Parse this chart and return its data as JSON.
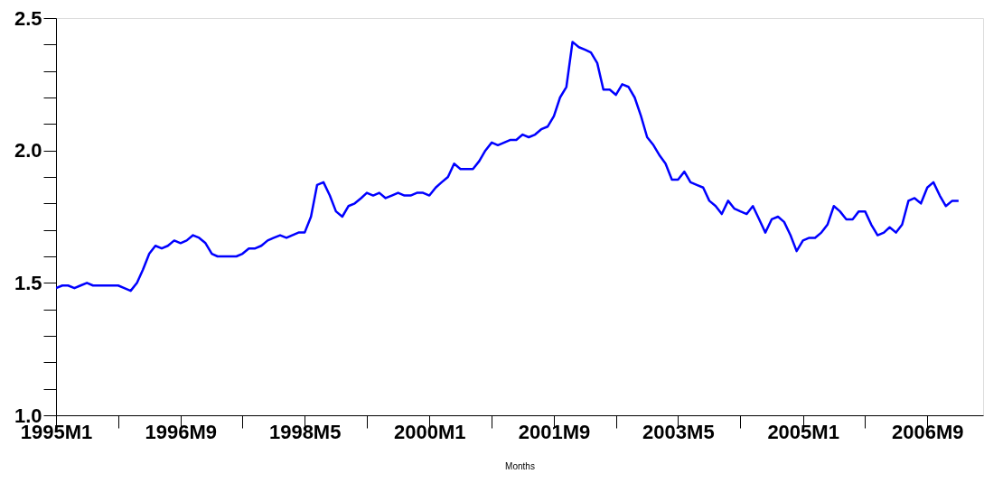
{
  "chart_data": {
    "type": "line",
    "xlabel": "Months",
    "x": [
      "1995-01",
      "1995-02",
      "1995-03",
      "1995-04",
      "1995-05",
      "1995-06",
      "1995-07",
      "1995-08",
      "1995-09",
      "1995-10",
      "1995-11",
      "1995-12",
      "1996-01",
      "1996-02",
      "1996-03",
      "1996-04",
      "1996-05",
      "1996-06",
      "1996-07",
      "1996-08",
      "1996-09",
      "1996-10",
      "1996-11",
      "1996-12",
      "1997-01",
      "1997-02",
      "1997-03",
      "1997-04",
      "1997-05",
      "1997-06",
      "1997-07",
      "1997-08",
      "1997-09",
      "1997-10",
      "1997-11",
      "1997-12",
      "1998-01",
      "1998-02",
      "1998-03",
      "1998-04",
      "1998-05",
      "1998-06",
      "1998-07",
      "1998-08",
      "1998-09",
      "1998-10",
      "1998-11",
      "1998-12",
      "1999-01",
      "1999-02",
      "1999-03",
      "1999-04",
      "1999-05",
      "1999-06",
      "1999-07",
      "1999-08",
      "1999-09",
      "1999-10",
      "1999-11",
      "1999-12",
      "2000-01",
      "2000-02",
      "2000-03",
      "2000-04",
      "2000-05",
      "2000-06",
      "2000-07",
      "2000-08",
      "2000-09",
      "2000-10",
      "2000-11",
      "2000-12",
      "2001-01",
      "2001-02",
      "2001-03",
      "2001-04",
      "2001-05",
      "2001-06",
      "2001-07",
      "2001-08",
      "2001-09",
      "2001-10",
      "2001-11",
      "2001-12",
      "2002-01",
      "2002-02",
      "2002-03",
      "2002-04",
      "2002-05",
      "2002-06",
      "2002-07",
      "2002-08",
      "2002-09",
      "2002-10",
      "2002-11",
      "2002-12",
      "2003-01",
      "2003-02",
      "2003-03",
      "2003-04",
      "2003-05",
      "2003-06",
      "2003-07",
      "2003-08",
      "2003-09",
      "2003-10",
      "2003-11",
      "2003-12",
      "2004-01",
      "2004-02",
      "2004-03",
      "2004-04",
      "2004-05",
      "2004-06",
      "2004-07",
      "2004-08",
      "2004-09",
      "2004-10",
      "2004-11",
      "2004-12",
      "2005-01",
      "2005-02",
      "2005-03",
      "2005-04",
      "2005-05",
      "2005-06",
      "2005-07",
      "2005-08",
      "2005-09",
      "2005-10",
      "2005-11",
      "2005-12",
      "2006-01",
      "2006-02",
      "2006-03",
      "2006-04",
      "2006-05",
      "2006-06",
      "2006-07",
      "2006-08",
      "2006-09",
      "2006-10",
      "2006-11",
      "2006-12",
      "2007-01",
      "2007-02"
    ],
    "series": [
      {
        "color": "#0000ff",
        "values": [
          1.48,
          1.49,
          1.49,
          1.48,
          1.49,
          1.5,
          1.49,
          1.49,
          1.49,
          1.49,
          1.49,
          1.48,
          1.47,
          1.5,
          1.55,
          1.61,
          1.64,
          1.63,
          1.64,
          1.66,
          1.65,
          1.66,
          1.68,
          1.67,
          1.65,
          1.61,
          1.6,
          1.6,
          1.6,
          1.6,
          1.61,
          1.63,
          1.63,
          1.64,
          1.66,
          1.67,
          1.68,
          1.67,
          1.68,
          1.69,
          1.69,
          1.75,
          1.87,
          1.88,
          1.83,
          1.77,
          1.75,
          1.79,
          1.8,
          1.82,
          1.84,
          1.83,
          1.84,
          1.82,
          1.83,
          1.84,
          1.83,
          1.83,
          1.84,
          1.84,
          1.83,
          1.86,
          1.88,
          1.9,
          1.95,
          1.93,
          1.93,
          1.93,
          1.96,
          2.0,
          2.03,
          2.02,
          2.03,
          2.04,
          2.04,
          2.06,
          2.05,
          2.06,
          2.08,
          2.09,
          2.13,
          2.2,
          2.24,
          2.41,
          2.39,
          2.38,
          2.37,
          2.33,
          2.23,
          2.23,
          2.21,
          2.25,
          2.24,
          2.2,
          2.13,
          2.05,
          2.02,
          1.98,
          1.95,
          1.89,
          1.89,
          1.92,
          1.88,
          1.87,
          1.86,
          1.81,
          1.79,
          1.76,
          1.81,
          1.78,
          1.77,
          1.76,
          1.79,
          1.74,
          1.69,
          1.74,
          1.75,
          1.73,
          1.68,
          1.62,
          1.66,
          1.67,
          1.67,
          1.69,
          1.72,
          1.79,
          1.77,
          1.74,
          1.74,
          1.77,
          1.77,
          1.72,
          1.68,
          1.69,
          1.71,
          1.69,
          1.72,
          1.81,
          1.82,
          1.8,
          1.86,
          1.88,
          1.83,
          1.79,
          1.81,
          1.81
        ]
      }
    ],
    "xlim": [
      "1995-01",
      "2007-06"
    ],
    "xticks": [
      {
        "value": "1995-01",
        "label": "1995M1"
      },
      {
        "value": "1995-11",
        "label": null
      },
      {
        "value": "1996-09",
        "label": "1996M9"
      },
      {
        "value": "1997-07",
        "label": null
      },
      {
        "value": "1998-05",
        "label": "1998M5"
      },
      {
        "value": "1999-03",
        "label": null
      },
      {
        "value": "2000-01",
        "label": "2000M1"
      },
      {
        "value": "2000-11",
        "label": null
      },
      {
        "value": "2001-09",
        "label": "2001M9"
      },
      {
        "value": "2002-07",
        "label": null
      },
      {
        "value": "2003-05",
        "label": "2003M5"
      },
      {
        "value": "2004-03",
        "label": null
      },
      {
        "value": "2005-01",
        "label": "2005M1"
      },
      {
        "value": "2005-11",
        "label": null
      },
      {
        "value": "2006-09",
        "label": "2006M9"
      }
    ],
    "ylim": [
      1.0,
      2.5
    ],
    "yticks": [
      {
        "value": 1.0,
        "label": "1.0"
      },
      {
        "value": 1.1,
        "label": null
      },
      {
        "value": 1.2,
        "label": null
      },
      {
        "value": 1.3,
        "label": null
      },
      {
        "value": 1.4,
        "label": null
      },
      {
        "value": 1.5,
        "label": "1.5"
      },
      {
        "value": 1.6,
        "label": null
      },
      {
        "value": 1.7,
        "label": null
      },
      {
        "value": 1.8,
        "label": null
      },
      {
        "value": 1.9,
        "label": null
      },
      {
        "value": 2.0,
        "label": "2.0"
      },
      {
        "value": 2.1,
        "label": null
      },
      {
        "value": 2.2,
        "label": null
      },
      {
        "value": 2.3,
        "label": null
      },
      {
        "value": 2.4,
        "label": null
      },
      {
        "value": 2.5,
        "label": "2.5"
      }
    ]
  }
}
